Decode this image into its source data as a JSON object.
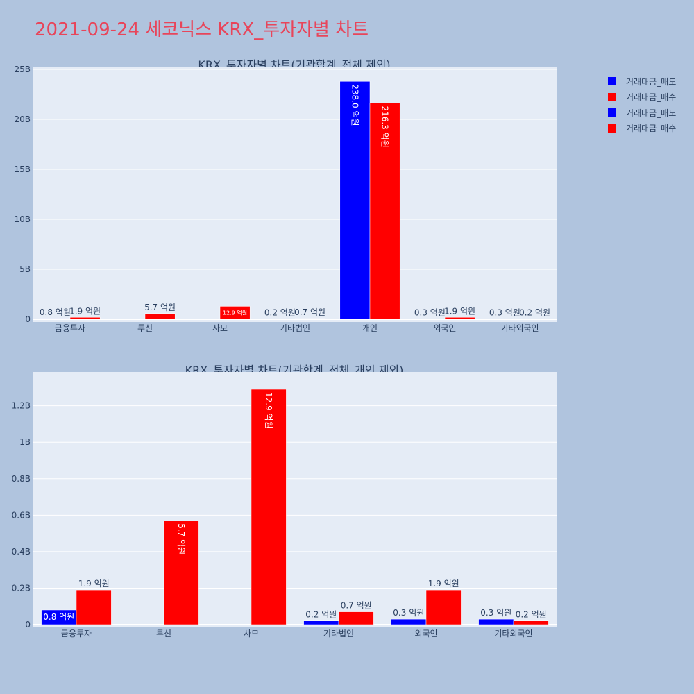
{
  "title": "2021-09-24 세코닉스 KRX_투자자별 차트",
  "legend": [
    {
      "label": "거래대금_매도",
      "color": "#0000ff"
    },
    {
      "label": "거래대금_매수",
      "color": "#ff0000"
    },
    {
      "label": "거래대금_매도",
      "color": "#0000ff"
    },
    {
      "label": "거래대금_매수",
      "color": "#ff0000"
    }
  ],
  "colors": {
    "sell": "#0000ff",
    "buy": "#ff0000",
    "plot_bg": "#e5ecf6",
    "page_bg": "#b0c4de"
  },
  "chart_data": [
    {
      "type": "bar",
      "title": "KRX_투자자별 차트(기관합계_전체 제외)",
      "categories": [
        "금융투자",
        "투신",
        "사모",
        "기타법인",
        "개인",
        "외국인",
        "기타외국인"
      ],
      "ylim": [
        0,
        25000000000
      ],
      "yticks": [
        0,
        5000000000,
        10000000000,
        15000000000,
        20000000000,
        25000000000
      ],
      "ytick_labels": [
        "0",
        "5B",
        "10B",
        "15B",
        "20B",
        "25B"
      ],
      "series": [
        {
          "name": "거래대금_매도",
          "color": "#0000ff",
          "values": [
            80000000,
            0,
            0,
            20000000,
            23800000000,
            30000000,
            30000000
          ],
          "labels": [
            "0.8 억원",
            "",
            "",
            "0.2 억원",
            "238.0 억원",
            "0.3 억원",
            "0.3 억원"
          ]
        },
        {
          "name": "거래대금_매수",
          "color": "#ff0000",
          "values": [
            190000000,
            570000000,
            1290000000,
            70000000,
            21630000000,
            190000000,
            20000000
          ],
          "labels": [
            "1.9 억원",
            "5.7 억원",
            "12.9 억원",
            "0.7 억원",
            "216.3 억원",
            "1.9 억원",
            "0.2 억원"
          ]
        }
      ],
      "grid": true
    },
    {
      "type": "bar",
      "title": "KRX_투자자별 차트(기관합계_전체_개인 제외)",
      "categories": [
        "금융투자",
        "투신",
        "사모",
        "기타법인",
        "외국인",
        "기타외국인"
      ],
      "ylim": [
        0,
        1370000000
      ],
      "yticks": [
        0,
        200000000,
        400000000,
        600000000,
        800000000,
        1000000000,
        1200000000
      ],
      "ytick_labels": [
        "0",
        "0.2B",
        "0.4B",
        "0.6B",
        "0.8B",
        "1B",
        "1.2B"
      ],
      "series": [
        {
          "name": "거래대금_매도",
          "color": "#0000ff",
          "values": [
            80000000,
            0,
            0,
            20000000,
            30000000,
            30000000
          ],
          "labels": [
            "0.8 억원",
            "",
            "",
            "0.2 억원",
            "0.3 억원",
            "0.3 억원"
          ]
        },
        {
          "name": "거래대금_매수",
          "color": "#ff0000",
          "values": [
            190000000,
            570000000,
            1290000000,
            70000000,
            190000000,
            20000000
          ],
          "labels": [
            "1.9 억원",
            "5.7 억원",
            "12.9 억원",
            "0.7 억원",
            "1.9 억원",
            "0.2 억원"
          ]
        }
      ],
      "grid": true
    }
  ]
}
